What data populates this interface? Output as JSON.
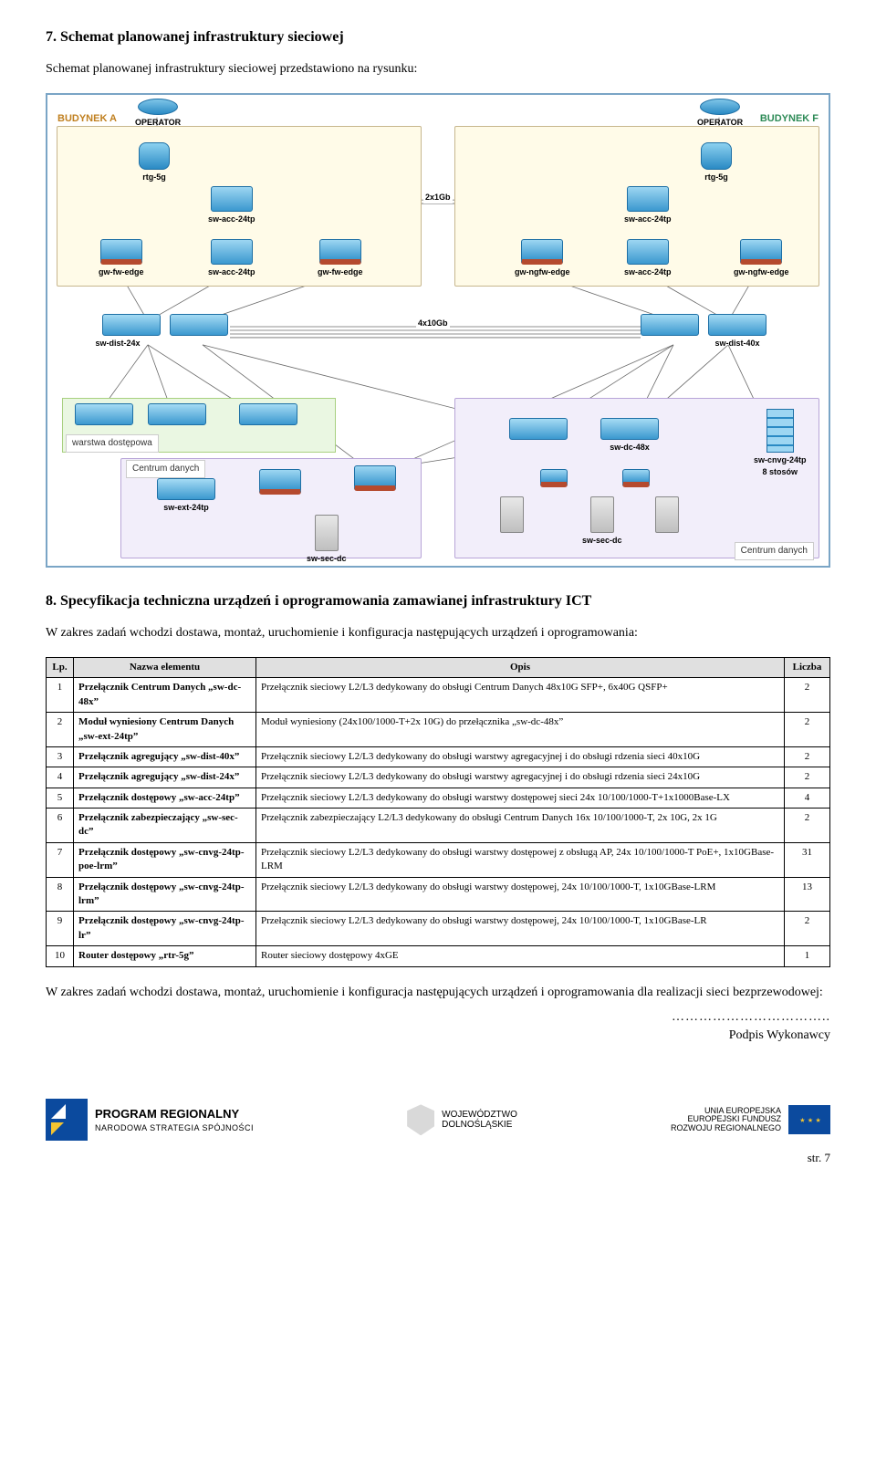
{
  "h7_title": "7.  Schemat planowanej infrastruktury sieciowej",
  "h7_intro": "Schemat planowanej infrastruktury sieciowej przedstawiono na rysunku:",
  "diagram": {
    "bldgA": "BUDYNEK A",
    "bldgF": "BUDYNEK F",
    "operator": "OPERATOR",
    "rtg5g": "rtg-5g",
    "sw_acc_24tp": "sw-acc-24tp",
    "gw_fw_edge": "gw-fw-edge",
    "gw_ngfw_edge": "gw-ngfw-edge",
    "sw_dist_24x": "sw-dist-24x",
    "sw_dist_40x": "sw-dist-40x",
    "sw_dc_48x": "sw-dc-48x",
    "sw_ext_24tp": "sw-ext-24tp",
    "sw_sec_dc": "sw-sec-dc",
    "sw_cnvg_24tp": "sw-cnvg-24tp",
    "stack_note": "8 stosów",
    "access_layer": "warstwa dostępowa",
    "dc_label": "Centrum danych",
    "link_2x1gb": "2x1Gb",
    "link_4x10gb": "4x10Gb"
  },
  "h8_title": "8.  Specyfikacja techniczna urządzeń i oprogramowania zamawianej infrastruktury ICT",
  "h8_intro": "W zakres zadań wchodzi dostawa, montaż, uruchomienie i konfiguracja następujących urządzeń i oprogramowania:",
  "table": {
    "head": {
      "lp": "Lp.",
      "name": "Nazwa elementu",
      "desc": "Opis",
      "cnt": "Liczba"
    },
    "rows": [
      {
        "lp": "1",
        "name": "Przełącznik Centrum Danych „sw-dc-48x”",
        "desc": "Przełącznik sieciowy L2/L3 dedykowany do obsługi Centrum Danych 48x10G SFP+, 6x40G QSFP+",
        "cnt": "2"
      },
      {
        "lp": "2",
        "name": "Moduł wyniesiony Centrum Danych „sw-ext-24tp”",
        "desc": "Moduł wyniesiony (24x100/1000-T+2x 10G) do przełącznika „sw-dc-48x”",
        "cnt": "2"
      },
      {
        "lp": "3",
        "name": "Przełącznik agregujący „sw-dist-40x”",
        "desc": "Przełącznik sieciowy L2/L3 dedykowany do obsługi warstwy agregacyjnej i do obsługi rdzenia sieci 40x10G",
        "cnt": "2"
      },
      {
        "lp": "4",
        "name": "Przełącznik agregujący „sw-dist-24x”",
        "desc": "Przełącznik sieciowy L2/L3 dedykowany do obsługi warstwy agregacyjnej i do obsługi rdzenia sieci 24x10G",
        "cnt": "2"
      },
      {
        "lp": "5",
        "name": "Przełącznik dostępowy „sw-acc-24tp”",
        "desc": "Przełącznik sieciowy L2/L3 dedykowany do obsługi warstwy dostępowej sieci 24x 10/100/1000-T+1x1000Base-LX",
        "cnt": "4"
      },
      {
        "lp": "6",
        "name": "Przełącznik zabezpieczający „sw-sec-dc”",
        "desc": "Przełącznik zabezpieczający L2/L3 dedykowany do obsługi Centrum Danych 16x 10/100/1000-T, 2x 10G, 2x 1G",
        "cnt": "2"
      },
      {
        "lp": "7",
        "name": "Przełącznik dostępowy „sw-cnvg-24tp-poe-lrm”",
        "desc": "Przełącznik sieciowy L2/L3 dedykowany do obsługi warstwy dostępowej z obsługą AP, 24x 10/100/1000-T PoE+, 1x10GBase-LRM",
        "cnt": "31"
      },
      {
        "lp": "8",
        "name": "Przełącznik dostępowy „sw-cnvg-24tp-lrm”",
        "desc": "Przełącznik sieciowy L2/L3 dedykowany do obsługi warstwy dostępowej, 24x 10/100/1000-T, 1x10GBase-LRM",
        "cnt": "13"
      },
      {
        "lp": "9",
        "name": "Przełącznik dostępowy „sw-cnvg-24tp-lr”",
        "desc": "Przełącznik sieciowy L2/L3 dedykowany do obsługi warstwy dostępowej, 24x 10/100/1000-T, 1x10GBase-LR",
        "cnt": "2"
      },
      {
        "lp": "10",
        "name": "Router dostępowy „rtr-5g”",
        "desc": "Router sieciowy dostępowy 4xGE",
        "cnt": "1"
      }
    ]
  },
  "outro": "W zakres zadań wchodzi dostawa, montaż, uruchomienie i konfiguracja następujących urządzeń i oprogramowania dla realizacji sieci bezprzewodowej:",
  "sig_dots": "……………………………..",
  "sig_label": "Podpis Wykonawcy",
  "footer": {
    "pr1": "PROGRAM REGIONALNY",
    "pr2": "NARODOWA STRATEGIA SPÓJNOŚCI",
    "woj": "WOJEWÓDZTWO\nDOLNOŚLĄSKIE",
    "eu1": "UNIA EUROPEJSKA",
    "eu2": "EUROPEJSKI FUNDUSZ",
    "eu3": "ROZWOJU REGIONALNEGO",
    "stars": "⋆ ⋆ ⋆"
  },
  "page": "str. 7"
}
